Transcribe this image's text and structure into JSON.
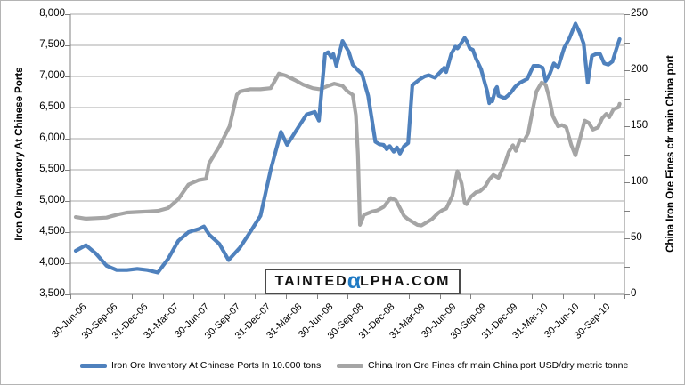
{
  "watermark": {
    "part1": "TAINTED",
    "alpha": "α",
    "part2": "LPHA.COM"
  },
  "chart_data": {
    "type": "line",
    "title": "",
    "x_axis": {
      "labels": [
        "30-Jun-06",
        "30-Sep-06",
        "31-Dec-06",
        "31-Mar-07",
        "30-Jun-07",
        "30-Sep-07",
        "31-Dec-07",
        "31-Mar-08",
        "30-Jun-08",
        "30-Sep-08",
        "31-Dec-08",
        "31-Mar-09",
        "30-Jun-09",
        "30-Sep-09",
        "31-Dec-09",
        "31-Mar-10",
        "30-Jun-10",
        "30-Sep-10"
      ],
      "months_start": "Jun-06",
      "months_end": "Nov-10",
      "months_span": 54
    },
    "left_axis": {
      "title": "Iron Ore Inventory At Chinese Ports",
      "min": 3500,
      "max": 8000,
      "step": 500,
      "tick_labels": [
        "8,000",
        "7,500",
        "7,000",
        "6,500",
        "6,000",
        "5,500",
        "5,000",
        "4,500",
        "4,000",
        "3,500"
      ]
    },
    "right_axis": {
      "title": "China Iron Ore Fines cfr main China port",
      "min": 0,
      "max": 250,
      "step": 50,
      "minor_step": 25,
      "tick_labels": [
        "250",
        "200",
        "150",
        "100",
        "50",
        "0"
      ]
    },
    "grid": true,
    "legend_position": "bottom",
    "series": [
      {
        "name": "China Iron Ore Fines cfr main China port USD/dry metric tonne",
        "axis": "right",
        "color": "#a5a5a5",
        "points": [
          [
            0,
            69
          ],
          [
            1,
            67.5
          ],
          [
            2,
            68
          ],
          [
            3,
            68.5
          ],
          [
            4,
            71
          ],
          [
            5,
            73
          ],
          [
            6,
            73.5
          ],
          [
            7,
            74
          ],
          [
            8,
            74.5
          ],
          [
            9,
            77
          ],
          [
            10,
            85
          ],
          [
            11,
            98
          ],
          [
            12,
            102
          ],
          [
            12.7,
            103
          ],
          [
            13,
            117
          ],
          [
            14,
            132
          ],
          [
            15,
            150
          ],
          [
            15.7,
            178
          ],
          [
            16,
            181
          ],
          [
            17,
            183
          ],
          [
            18,
            183
          ],
          [
            19,
            184
          ],
          [
            19.8,
            197
          ],
          [
            20.5,
            195
          ],
          [
            21.4,
            191
          ],
          [
            22.2,
            187
          ],
          [
            23.1,
            184
          ],
          [
            23.8,
            183
          ],
          [
            24.6,
            186
          ],
          [
            25.2,
            188
          ],
          [
            26,
            186
          ],
          [
            26.5,
            181
          ],
          [
            27,
            178
          ],
          [
            27.3,
            160
          ],
          [
            27.5,
            125
          ],
          [
            27.7,
            62
          ],
          [
            28.1,
            71
          ],
          [
            28.9,
            74
          ],
          [
            29.4,
            75
          ],
          [
            30,
            78
          ],
          [
            30.7,
            86
          ],
          [
            31.2,
            84
          ],
          [
            32,
            70
          ],
          [
            32.4,
            67
          ],
          [
            33.3,
            62
          ],
          [
            33.7,
            61.5
          ],
          [
            34.7,
            67
          ],
          [
            35.3,
            72.5
          ],
          [
            35.7,
            75
          ],
          [
            36.1,
            76.5
          ],
          [
            36.7,
            88
          ],
          [
            37.2,
            110
          ],
          [
            37.6,
            99
          ],
          [
            37.9,
            82
          ],
          [
            38.1,
            80.5
          ],
          [
            38.5,
            87
          ],
          [
            39,
            91
          ],
          [
            39.4,
            92
          ],
          [
            39.9,
            96
          ],
          [
            40.3,
            102.5
          ],
          [
            40.7,
            106.5
          ],
          [
            41.2,
            104
          ],
          [
            41.8,
            116
          ],
          [
            42.2,
            127
          ],
          [
            42.6,
            133
          ],
          [
            42.9,
            128
          ],
          [
            43.3,
            138
          ],
          [
            43.7,
            137
          ],
          [
            44.1,
            144
          ],
          [
            44.5,
            163
          ],
          [
            44.9,
            181
          ],
          [
            45.4,
            189
          ],
          [
            45.8,
            187
          ],
          [
            46.1,
            177
          ],
          [
            46.5,
            159
          ],
          [
            47,
            150
          ],
          [
            47.4,
            151
          ],
          [
            47.8,
            149
          ],
          [
            48.3,
            133
          ],
          [
            48.7,
            124
          ],
          [
            49.2,
            141
          ],
          [
            49.6,
            155
          ],
          [
            50,
            153
          ],
          [
            50.4,
            147
          ],
          [
            50.9,
            149
          ],
          [
            51.3,
            157
          ],
          [
            51.7,
            161
          ],
          [
            52,
            158
          ],
          [
            52.4,
            165
          ],
          [
            52.9,
            167
          ],
          [
            53,
            170
          ]
        ]
      },
      {
        "name": "Iron Ore Inventory At Chinese Ports In 10.000 tons",
        "axis": "left",
        "color": "#4f81bd",
        "points": [
          [
            0,
            4200
          ],
          [
            1,
            4290
          ],
          [
            2,
            4150
          ],
          [
            3,
            3960
          ],
          [
            4,
            3890
          ],
          [
            5,
            3890
          ],
          [
            6,
            3910
          ],
          [
            7,
            3890
          ],
          [
            8,
            3850
          ],
          [
            9,
            4070
          ],
          [
            10,
            4360
          ],
          [
            11,
            4500
          ],
          [
            12,
            4550
          ],
          [
            12.5,
            4590
          ],
          [
            13,
            4460
          ],
          [
            14,
            4310
          ],
          [
            14.9,
            4050
          ],
          [
            16,
            4250
          ],
          [
            17,
            4500
          ],
          [
            18,
            4760
          ],
          [
            19,
            5500
          ],
          [
            20,
            6110
          ],
          [
            20.6,
            5900
          ],
          [
            21.8,
            6210
          ],
          [
            22.5,
            6390
          ],
          [
            23.3,
            6430
          ],
          [
            23.7,
            6290
          ],
          [
            24.3,
            7360
          ],
          [
            24.6,
            7390
          ],
          [
            24.9,
            7310
          ],
          [
            25.1,
            7360
          ],
          [
            25.4,
            7170
          ],
          [
            26,
            7570
          ],
          [
            26.6,
            7400
          ],
          [
            27,
            7190
          ],
          [
            27.5,
            7100
          ],
          [
            27.9,
            7040
          ],
          [
            28.5,
            6690
          ],
          [
            29.2,
            5950
          ],
          [
            29.6,
            5910
          ],
          [
            30,
            5900
          ],
          [
            30.3,
            5830
          ],
          [
            30.6,
            5880
          ],
          [
            31,
            5790
          ],
          [
            31.3,
            5860
          ],
          [
            31.6,
            5760
          ],
          [
            32,
            5880
          ],
          [
            32.4,
            5930
          ],
          [
            32.8,
            6860
          ],
          [
            33.5,
            6950
          ],
          [
            34,
            7000
          ],
          [
            34.4,
            7020
          ],
          [
            35,
            6980
          ],
          [
            35.7,
            7100
          ],
          [
            35.9,
            7140
          ],
          [
            36.1,
            7070
          ],
          [
            36.6,
            7360
          ],
          [
            37,
            7480
          ],
          [
            37.2,
            7450
          ],
          [
            37.5,
            7520
          ],
          [
            37.9,
            7620
          ],
          [
            38.1,
            7570
          ],
          [
            38.4,
            7450
          ],
          [
            38.7,
            7430
          ],
          [
            39,
            7290
          ],
          [
            39.5,
            7120
          ],
          [
            39.9,
            6880
          ],
          [
            40.1,
            6760
          ],
          [
            40.3,
            6570
          ],
          [
            40.45,
            6640
          ],
          [
            40.6,
            6600
          ],
          [
            40.9,
            6790
          ],
          [
            41.05,
            6830
          ],
          [
            41.2,
            6690
          ],
          [
            41.5,
            6670
          ],
          [
            41.8,
            6650
          ],
          [
            42.1,
            6690
          ],
          [
            42.4,
            6740
          ],
          [
            42.8,
            6830
          ],
          [
            43.3,
            6900
          ],
          [
            44,
            6960
          ],
          [
            44.6,
            7170
          ],
          [
            45.1,
            7170
          ],
          [
            45.5,
            7140
          ],
          [
            45.8,
            6930
          ],
          [
            46.2,
            7040
          ],
          [
            46.6,
            7210
          ],
          [
            47,
            7140
          ],
          [
            47.6,
            7460
          ],
          [
            48.1,
            7610
          ],
          [
            48.7,
            7850
          ],
          [
            49.1,
            7710
          ],
          [
            49.5,
            7530
          ],
          [
            49.9,
            6900
          ],
          [
            50.3,
            7330
          ],
          [
            50.7,
            7360
          ],
          [
            51.1,
            7360
          ],
          [
            51.5,
            7210
          ],
          [
            51.9,
            7190
          ],
          [
            52.3,
            7240
          ],
          [
            52.7,
            7450
          ],
          [
            53,
            7600
          ]
        ]
      }
    ]
  },
  "legend": {
    "items": [
      {
        "label": "Iron Ore Inventory At Chinese Ports In 10.000 tons",
        "color": "#4f81bd"
      },
      {
        "label": "China Iron Ore Fines cfr main China port USD/dry metric tonne",
        "color": "#a5a5a5"
      }
    ]
  }
}
